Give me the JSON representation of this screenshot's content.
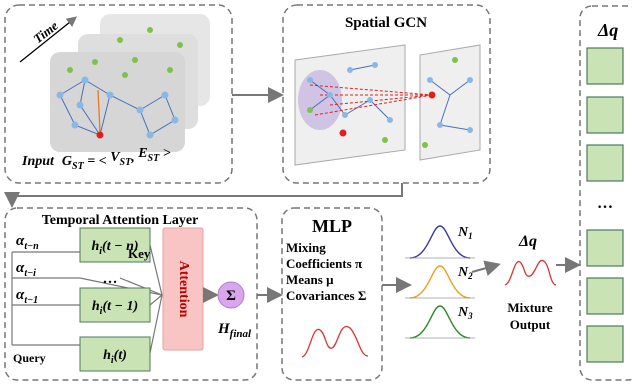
{
  "input_panel": {
    "time": "Time",
    "input_label": "Input",
    "formula": [
      "G",
      "ST",
      " = < ",
      "V",
      "ST",
      ", ",
      "E",
      "ST",
      " >"
    ]
  },
  "spatial_panel": {
    "title": "Spatial GCN"
  },
  "output_column": {
    "title": "Δq",
    "ellipsis": "…"
  },
  "temporal_panel": {
    "title": "Temporal Attention Layer",
    "alphas": [
      {
        "symbol": "α",
        "sub": "t−n"
      },
      {
        "symbol": "α",
        "sub": "t−i"
      },
      {
        "symbol": "α",
        "sub": "t−1"
      }
    ],
    "states": [
      {
        "base": "h",
        "sub": "i",
        "arg": "(t − n)"
      },
      {
        "base": "h",
        "sub": "i",
        "arg": "(t − 1)"
      },
      {
        "base": "h",
        "sub": "i",
        "arg": "(t)"
      }
    ],
    "ellipsis": "…",
    "key": "Key",
    "query": "Query",
    "attention": "Attention",
    "sum": "Σ",
    "output": {
      "base": "H",
      "sub": "final"
    }
  },
  "mlp_panel": {
    "title": "MLP",
    "lines": [
      "Mixing",
      "Coefficients π",
      "Means μ",
      "Covariances Σ"
    ]
  },
  "gaussians": [
    {
      "base": "N",
      "sub": "1"
    },
    {
      "base": "N",
      "sub": "2"
    },
    {
      "base": "N",
      "sub": "3"
    }
  ],
  "mixture": {
    "symbol": "Δq",
    "lines": [
      "Mixture",
      "Output"
    ]
  }
}
